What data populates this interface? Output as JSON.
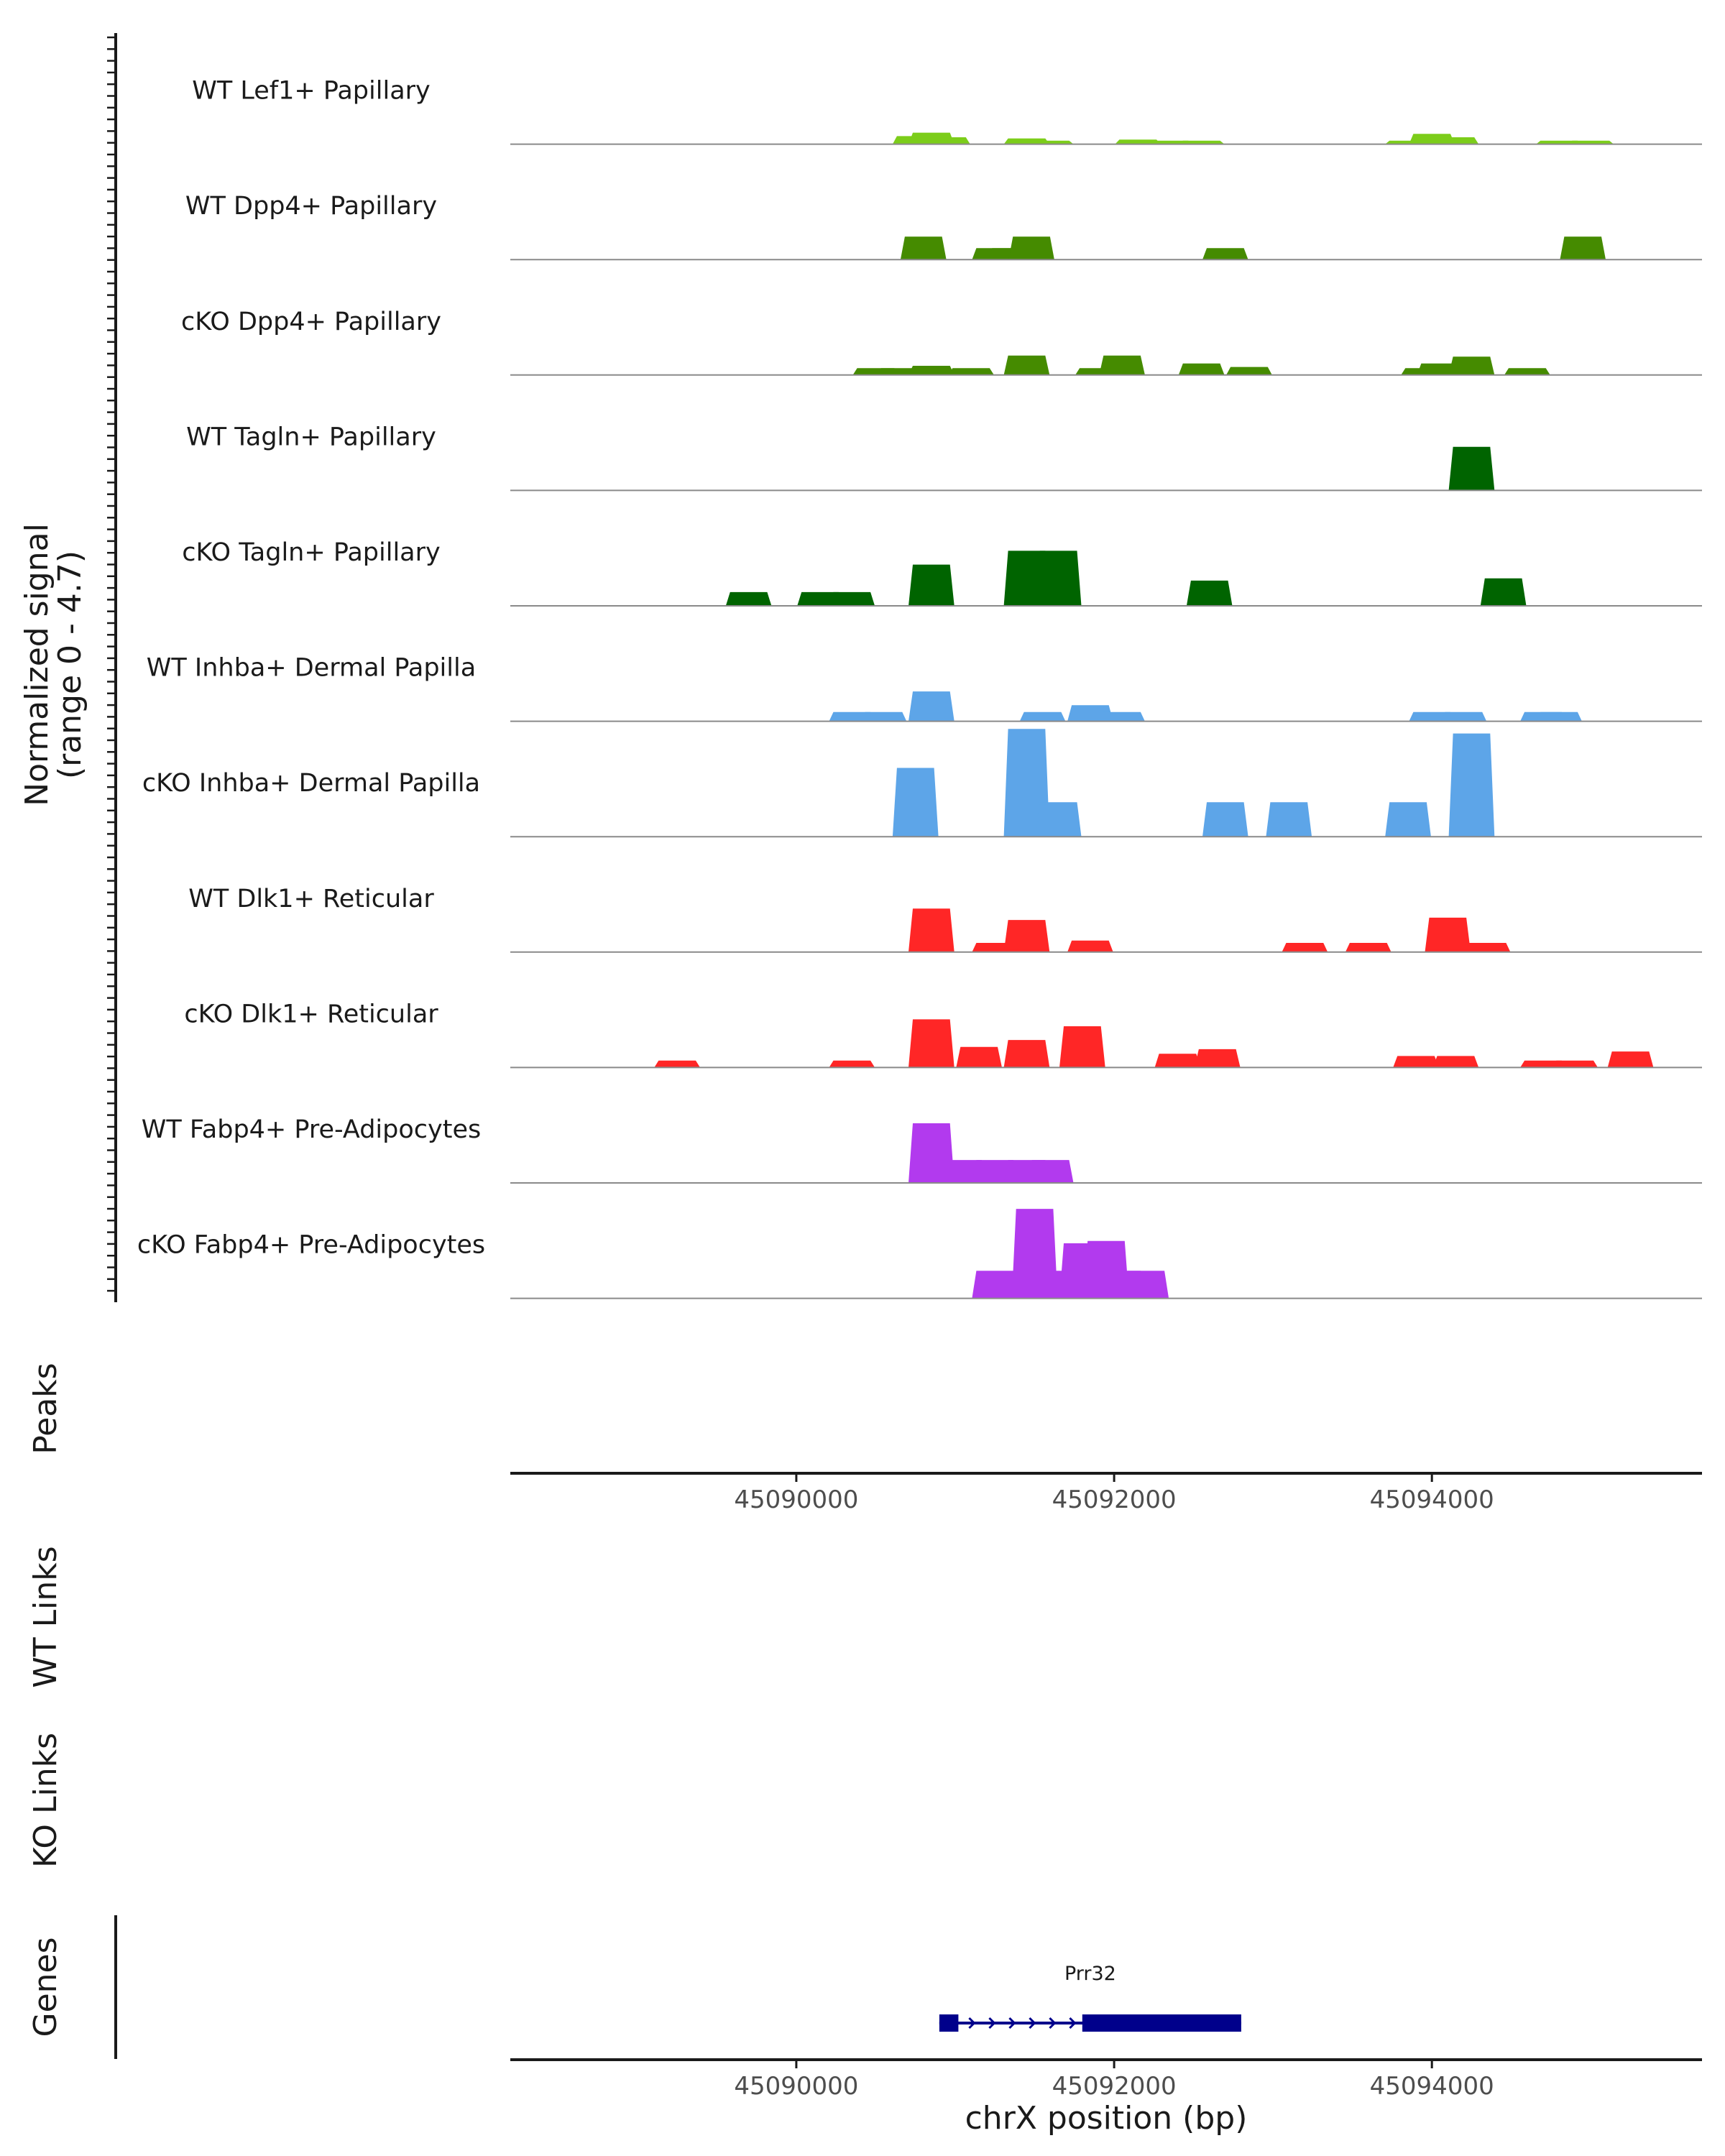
{
  "chart_data": {
    "type": "area",
    "y_axis_title": [
      "Normalized signal",
      "(range 0 - 4.7)"
    ],
    "y_range": [
      0,
      4.7
    ],
    "x_domain": [
      45088200,
      45095700
    ],
    "x_title": "chrX position (bp)",
    "x_ticks": [
      45090000,
      45092000,
      45094000
    ],
    "x_tick_labels": [
      "45090000",
      "45092000",
      "45094000"
    ],
    "tracks": [
      {
        "name": "WT Lef1+ Papillary",
        "color": "#7CCD1A",
        "peaks": [
          [
            45090750,
            0.35
          ],
          [
            45090850,
            0.5
          ],
          [
            45090950,
            0.3
          ],
          [
            45091450,
            0.25
          ],
          [
            45091600,
            0.15
          ],
          [
            45092150,
            0.2
          ],
          [
            45092350,
            0.15
          ],
          [
            45092550,
            0.15
          ],
          [
            45093850,
            0.15
          ],
          [
            45094000,
            0.45
          ],
          [
            45094150,
            0.3
          ],
          [
            45094800,
            0.15
          ],
          [
            45095000,
            0.15
          ]
        ]
      },
      {
        "name": "WT Dpp4+ Papillary",
        "color": "#458B00",
        "peaks": [
          [
            45090800,
            1.0
          ],
          [
            45091250,
            0.5
          ],
          [
            45091350,
            0.5
          ],
          [
            45091480,
            1.0
          ],
          [
            45092700,
            0.5
          ],
          [
            45094950,
            1.0
          ]
        ]
      },
      {
        "name": "cKO Dpp4+ Papillary",
        "color": "#458B00",
        "peaks": [
          [
            45090500,
            0.3
          ],
          [
            45090650,
            0.3
          ],
          [
            45090850,
            0.4
          ],
          [
            45091100,
            0.3
          ],
          [
            45091450,
            0.85
          ],
          [
            45091900,
            0.3
          ],
          [
            45092050,
            0.85
          ],
          [
            45092550,
            0.5
          ],
          [
            45092850,
            0.35
          ],
          [
            45093950,
            0.3
          ],
          [
            45094050,
            0.5
          ],
          [
            45094250,
            0.8
          ],
          [
            45094600,
            0.3
          ]
        ]
      },
      {
        "name": "WT Tagln+ Papillary",
        "color": "#006400",
        "peaks": [
          [
            45094250,
            1.9
          ]
        ]
      },
      {
        "name": "cKO Tagln+ Papillary",
        "color": "#006400",
        "peaks": [
          [
            45089700,
            0.6
          ],
          [
            45090150,
            0.6
          ],
          [
            45090350,
            0.6
          ],
          [
            45090850,
            1.8
          ],
          [
            45091450,
            2.4
          ],
          [
            45091650,
            2.4
          ],
          [
            45092600,
            1.1
          ],
          [
            45094450,
            1.2
          ]
        ]
      },
      {
        "name": "WT Inhba+ Dermal Papilla",
        "color": "#5DA5E8",
        "peaks": [
          [
            45090350,
            0.4
          ],
          [
            45090550,
            0.4
          ],
          [
            45090850,
            1.3
          ],
          [
            45091550,
            0.4
          ],
          [
            45091850,
            0.7
          ],
          [
            45092050,
            0.4
          ],
          [
            45094000,
            0.4
          ],
          [
            45094200,
            0.4
          ],
          [
            45094700,
            0.4
          ],
          [
            45094800,
            0.4
          ]
        ]
      },
      {
        "name": "cKO Inhba+ Dermal Papilla",
        "color": "#5DA5E8",
        "peaks": [
          [
            45090750,
            3.0
          ],
          [
            45091450,
            4.7
          ],
          [
            45091650,
            1.5
          ],
          [
            45092700,
            1.5
          ],
          [
            45093100,
            1.5
          ],
          [
            45093850,
            1.5
          ],
          [
            45094250,
            4.5
          ]
        ]
      },
      {
        "name": "WT Dlk1+ Reticular",
        "color": "#FF2626",
        "peaks": [
          [
            45090850,
            1.9
          ],
          [
            45091250,
            0.4
          ],
          [
            45091450,
            1.4
          ],
          [
            45091850,
            0.5
          ],
          [
            45093200,
            0.4
          ],
          [
            45093600,
            0.4
          ],
          [
            45094100,
            1.5
          ],
          [
            45094350,
            0.4
          ]
        ]
      },
      {
        "name": "cKO Dlk1+ Reticular",
        "color": "#FF2626",
        "peaks": [
          [
            45089250,
            0.3
          ],
          [
            45090350,
            0.3
          ],
          [
            45090850,
            2.1
          ],
          [
            45091150,
            0.9
          ],
          [
            45091450,
            1.2
          ],
          [
            45091800,
            1.8
          ],
          [
            45092400,
            0.6
          ],
          [
            45092650,
            0.8
          ],
          [
            45093900,
            0.5
          ],
          [
            45094150,
            0.5
          ],
          [
            45094700,
            0.3
          ],
          [
            45094900,
            0.3
          ],
          [
            45095250,
            0.7
          ]
        ]
      },
      {
        "name": "WT Fabp4+ Pre-Adipocytes",
        "color": "#B23AEE",
        "peaks": [
          [
            45090850,
            2.6
          ],
          [
            45091050,
            1.0
          ],
          [
            45091250,
            1.0
          ],
          [
            45091450,
            1.0
          ],
          [
            45091600,
            1.0
          ]
        ]
      },
      {
        "name": "cKO Fabp4+ Pre-Adipocytes",
        "color": "#B23AEE",
        "peaks": [
          [
            45091250,
            1.2
          ],
          [
            45091500,
            3.9
          ],
          [
            45091650,
            1.2
          ],
          [
            45091800,
            2.4
          ],
          [
            45091950,
            2.5
          ],
          [
            45092050,
            1.2
          ],
          [
            45092200,
            1.2
          ]
        ]
      }
    ],
    "panels": [
      "Peaks",
      "WT Links",
      "KO Links",
      "Genes"
    ],
    "gene": {
      "name": "Prr32",
      "color": "#00008B",
      "start": 45090900,
      "end": 45092800,
      "exons": [
        [
          45090900,
          45091020
        ],
        [
          45091800,
          45092800
        ]
      ],
      "strand": "+"
    }
  }
}
